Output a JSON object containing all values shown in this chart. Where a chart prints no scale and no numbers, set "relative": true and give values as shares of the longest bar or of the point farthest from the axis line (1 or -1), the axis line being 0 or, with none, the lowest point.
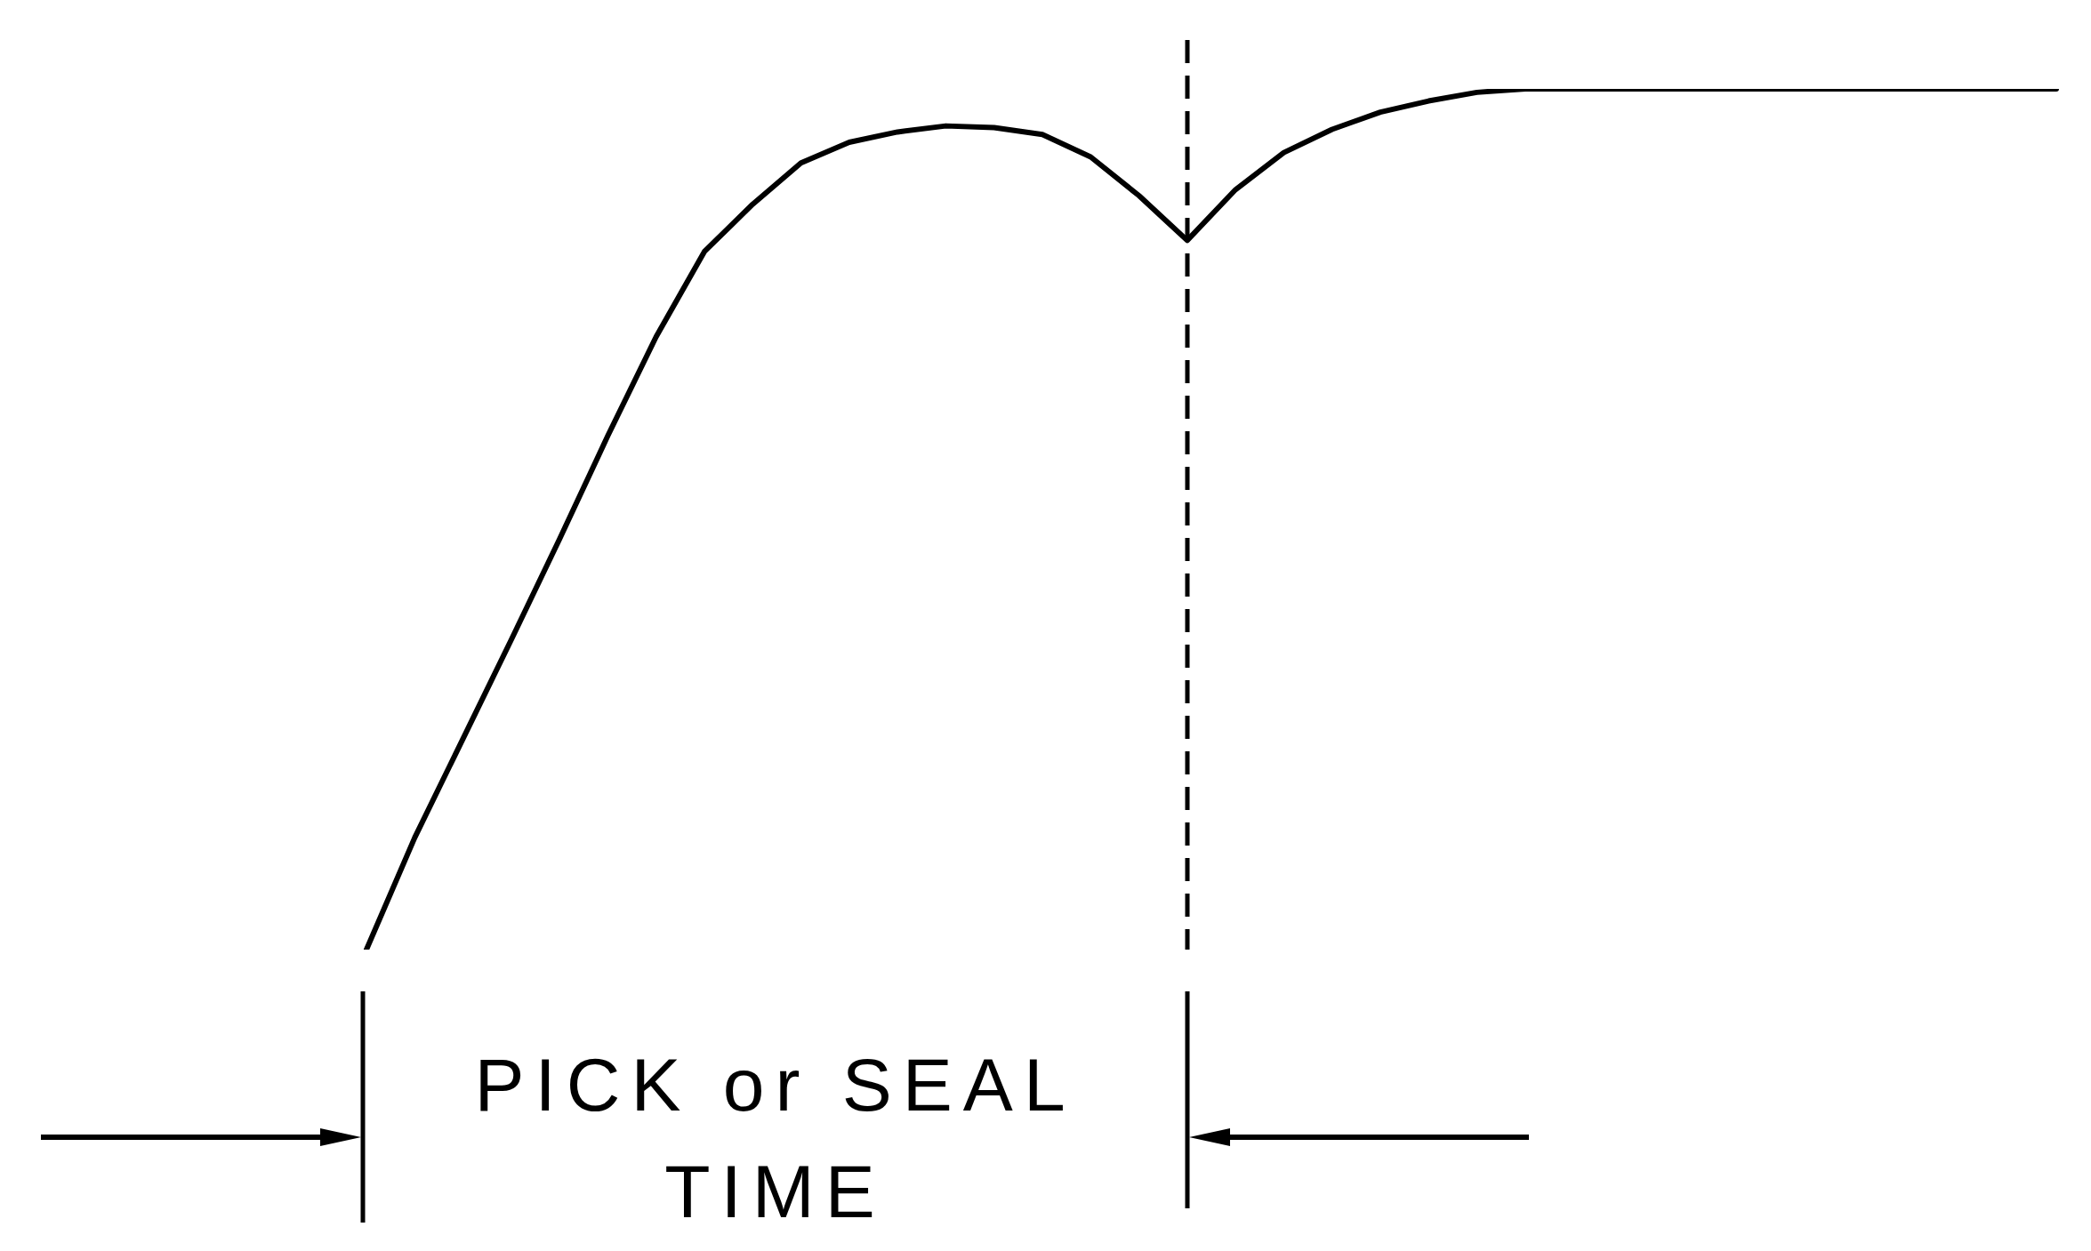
{
  "chart_data": {
    "type": "line",
    "relative": true,
    "categories": [
      null,
      null,
      null,
      null,
      null,
      null,
      null,
      null,
      null,
      null,
      null,
      null,
      null,
      null,
      null,
      null,
      null,
      null,
      null,
      null,
      null,
      null,
      null,
      null,
      null,
      null,
      null,
      null,
      null,
      null,
      null,
      null,
      null,
      null,
      null,
      null
    ],
    "series": [
      {
        "color": "#000000",
        "values": [
          0,
          0.13,
          0.245,
          0.36,
          0.477,
          0.597,
          0.712,
          0.811,
          0.866,
          0.914,
          0.938,
          0.95,
          0.957,
          0.955,
          0.947,
          0.921,
          0.876,
          0.824,
          0.883,
          0.926,
          0.953,
          0.973,
          0.986,
          0.996,
          1,
          1,
          1,
          1,
          1,
          1,
          1,
          1,
          1,
          1,
          1,
          1
        ]
      }
    ],
    "annotations": [
      "PICK or SEAL TIME"
    ],
    "grid": false,
    "marker": "none",
    "line_style": "solid"
  }
}
